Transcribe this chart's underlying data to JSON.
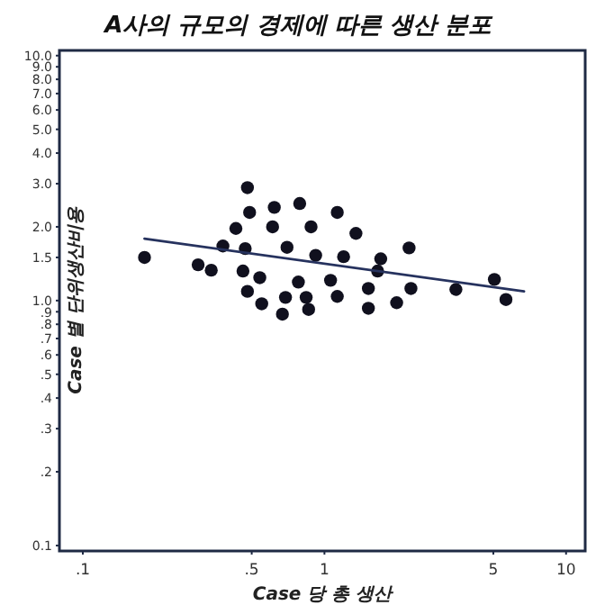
{
  "chart_data": {
    "type": "scatter",
    "title": "A사의 규모의 경제에 따른 생산 분포",
    "xlabel": "Case 당 총 생산",
    "ylabel": "Case 별 단위생산비용",
    "log": "xy",
    "grid": false,
    "marker": "circle",
    "xlim": [
      0.08,
      12
    ],
    "ylim": [
      0.095,
      10.5
    ],
    "xticks": [
      {
        "value": 0.1,
        "label": ".1"
      },
      {
        "value": 0.5,
        "label": ".5"
      },
      1,
      5,
      10
    ],
    "yticks": [
      {
        "value": 0.1,
        "label": "0.1"
      },
      {
        "value": 0.2,
        "label": ".2"
      },
      {
        "value": 0.3,
        "label": ".3"
      },
      {
        "value": 0.4,
        "label": ".4"
      },
      {
        "value": 0.5,
        "label": ".5"
      },
      {
        "value": 0.6,
        "label": ".6"
      },
      {
        "value": 0.7,
        "label": ".7"
      },
      {
        "value": 0.8,
        "label": ".8"
      },
      {
        "value": 0.9,
        "label": ".9"
      },
      {
        "value": 1,
        "label": "1.0"
      },
      {
        "value": 1.5,
        "label": "1.5"
      },
      {
        "value": 2,
        "label": "2.0"
      },
      {
        "value": 3,
        "label": "3.0"
      },
      {
        "value": 4,
        "label": "4.0"
      },
      {
        "value": 5,
        "label": "5.0"
      },
      {
        "value": 6,
        "label": "6.0"
      },
      {
        "value": 7,
        "label": "7.0"
      },
      {
        "value": 8,
        "label": "8.0"
      },
      {
        "value": 9,
        "label": "9.0"
      },
      {
        "value": 10,
        "label": "10.0"
      }
    ],
    "series": [
      {
        "type": "scatter",
        "color": "#10101e",
        "x": [
          0.18,
          0.3,
          0.34,
          0.38,
          0.43,
          0.48,
          0.49,
          0.47,
          0.46,
          0.54,
          0.48,
          0.55,
          0.67,
          0.62,
          0.61,
          0.7,
          0.78,
          0.69,
          0.84,
          0.86,
          0.79,
          0.88,
          0.92,
          1.06,
          1.13,
          1.13,
          1.2,
          1.35,
          1.52,
          1.52,
          1.66,
          1.71,
          1.99,
          2.24,
          2.28,
          3.5,
          5.05,
          5.64
        ],
        "values": [
          1.5,
          1.4,
          1.33,
          1.67,
          1.97,
          2.89,
          2.29,
          1.63,
          1.32,
          1.24,
          1.09,
          0.97,
          0.88,
          2.4,
          2.0,
          1.65,
          1.19,
          1.03,
          1.03,
          0.92,
          2.49,
          2.0,
          1.53,
          1.21,
          1.04,
          2.29,
          1.51,
          1.88,
          1.12,
          0.93,
          1.32,
          1.48,
          0.98,
          1.64,
          1.12,
          1.11,
          1.22,
          1.01
        ]
      },
      {
        "type": "line",
        "color": "#26325e",
        "marker": "none",
        "line_style": "solid",
        "x": [
          0.18,
          6.7
        ],
        "values": [
          1.79,
          1.09
        ]
      }
    ]
  }
}
